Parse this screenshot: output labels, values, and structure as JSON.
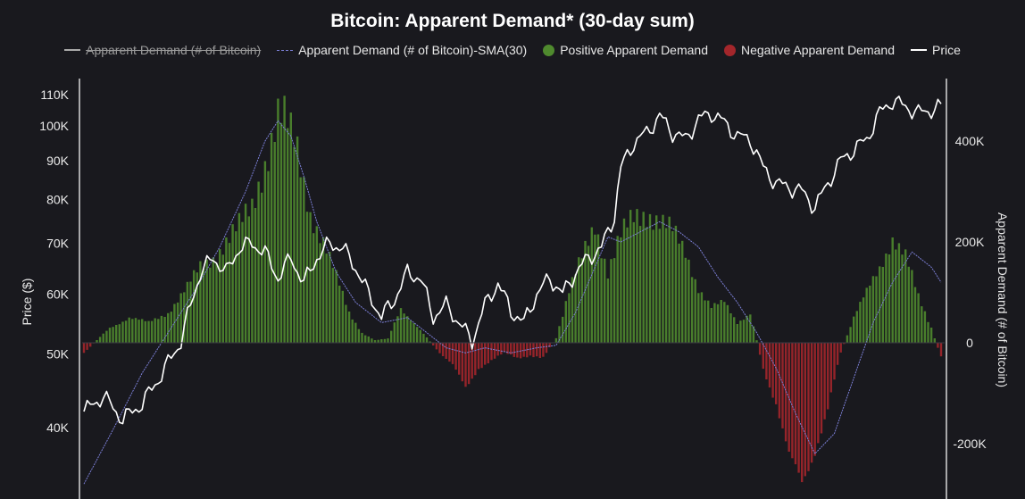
{
  "chart_data": {
    "type": "bar",
    "title": "Bitcoin: Apparent Demand* (30-day sum)",
    "legend_position": "top",
    "legend": [
      {
        "label": "Apparent Demand (# of Bitcoin)",
        "swatch": "line",
        "color": "#cccccc",
        "hidden": true
      },
      {
        "label": "Apparent Demand (# of Bitcoin)-SMA(30)",
        "swatch": "dashed-line",
        "color": "#7b7fd6"
      },
      {
        "label": "Positive Apparent Demand",
        "swatch": "dot",
        "color": "#4f8a2e"
      },
      {
        "label": "Negative Apparent Demand",
        "swatch": "dot",
        "color": "#a3262b"
      },
      {
        "label": "Price",
        "swatch": "line",
        "color": "#ffffff"
      }
    ],
    "ylabel_left": "Price ($)",
    "ylabel_right": "Apparent Demand (# of Bitcoin)",
    "left_axis": {
      "scale": "log",
      "ticks": [
        40000,
        50000,
        60000,
        70000,
        80000,
        90000,
        100000,
        110000
      ],
      "tick_labels": [
        "40K",
        "50K",
        "60K",
        "70K",
        "80K",
        "90K",
        "100K",
        "110K"
      ]
    },
    "right_axis": {
      "scale": "linear",
      "ticks": [
        -200000,
        0,
        200000,
        400000
      ],
      "tick_labels": [
        "-200K",
        "0",
        "200K",
        "400K"
      ]
    },
    "demand_anchors": [
      [
        0,
        -20000
      ],
      [
        4,
        5000
      ],
      [
        8,
        30000
      ],
      [
        14,
        50000
      ],
      [
        20,
        40000
      ],
      [
        26,
        60000
      ],
      [
        32,
        110000
      ],
      [
        36,
        150000
      ],
      [
        40,
        170000
      ],
      [
        44,
        200000
      ],
      [
        48,
        230000
      ],
      [
        52,
        270000
      ],
      [
        56,
        360000
      ],
      [
        60,
        450000
      ],
      [
        62,
        440000
      ],
      [
        66,
        380000
      ],
      [
        70,
        260000
      ],
      [
        74,
        200000
      ],
      [
        78,
        130000
      ],
      [
        82,
        60000
      ],
      [
        86,
        20000
      ],
      [
        90,
        5000
      ],
      [
        94,
        8000
      ],
      [
        98,
        70000
      ],
      [
        102,
        40000
      ],
      [
        106,
        10000
      ],
      [
        110,
        -20000
      ],
      [
        114,
        -45000
      ],
      [
        118,
        -90000
      ],
      [
        122,
        -50000
      ],
      [
        126,
        -35000
      ],
      [
        130,
        -20000
      ],
      [
        134,
        -30000
      ],
      [
        138,
        -25000
      ],
      [
        142,
        -30000
      ],
      [
        146,
        10000
      ],
      [
        150,
        100000
      ],
      [
        154,
        170000
      ],
      [
        158,
        240000
      ],
      [
        162,
        140000
      ],
      [
        166,
        210000
      ],
      [
        170,
        250000
      ],
      [
        174,
        260000
      ],
      [
        178,
        240000
      ],
      [
        182,
        220000
      ],
      [
        186,
        180000
      ],
      [
        190,
        110000
      ],
      [
        194,
        70000
      ],
      [
        198,
        80000
      ],
      [
        202,
        40000
      ],
      [
        206,
        60000
      ],
      [
        210,
        -50000
      ],
      [
        214,
        -120000
      ],
      [
        218,
        -230000
      ],
      [
        222,
        -280000
      ],
      [
        226,
        -210000
      ],
      [
        230,
        -130000
      ],
      [
        234,
        -20000
      ],
      [
        238,
        50000
      ],
      [
        242,
        100000
      ],
      [
        246,
        150000
      ],
      [
        250,
        210000
      ],
      [
        254,
        170000
      ],
      [
        258,
        90000
      ],
      [
        262,
        30000
      ],
      [
        265,
        -30000
      ]
    ],
    "price_anchors": [
      [
        0,
        42000
      ],
      [
        6,
        44000
      ],
      [
        12,
        41000
      ],
      [
        18,
        43000
      ],
      [
        24,
        47000
      ],
      [
        30,
        52000
      ],
      [
        36,
        64000
      ],
      [
        40,
        67000
      ],
      [
        44,
        64000
      ],
      [
        48,
        69000
      ],
      [
        52,
        70000
      ],
      [
        56,
        68000
      ],
      [
        60,
        63000
      ],
      [
        64,
        67000
      ],
      [
        68,
        62000
      ],
      [
        72,
        67000
      ],
      [
        76,
        70000
      ],
      [
        80,
        69000
      ],
      [
        84,
        65000
      ],
      [
        88,
        60000
      ],
      [
        92,
        56000
      ],
      [
        96,
        59000
      ],
      [
        100,
        64000
      ],
      [
        104,
        63000
      ],
      [
        108,
        56000
      ],
      [
        112,
        58000
      ],
      [
        116,
        55000
      ],
      [
        120,
        52000
      ],
      [
        124,
        58000
      ],
      [
        128,
        62000
      ],
      [
        132,
        57000
      ],
      [
        136,
        55000
      ],
      [
        140,
        60000
      ],
      [
        144,
        63000
      ],
      [
        148,
        60000
      ],
      [
        152,
        64000
      ],
      [
        156,
        67000
      ],
      [
        160,
        69000
      ],
      [
        164,
        76000
      ],
      [
        166,
        88000
      ],
      [
        170,
        95000
      ],
      [
        174,
        98000
      ],
      [
        178,
        103000
      ],
      [
        182,
        98000
      ],
      [
        186,
        96000
      ],
      [
        190,
        102000
      ],
      [
        194,
        104000
      ],
      [
        198,
        101000
      ],
      [
        202,
        97000
      ],
      [
        206,
        96000
      ],
      [
        210,
        88000
      ],
      [
        214,
        84000
      ],
      [
        218,
        83000
      ],
      [
        222,
        82000
      ],
      [
        226,
        78000
      ],
      [
        230,
        84000
      ],
      [
        234,
        90000
      ],
      [
        238,
        93000
      ],
      [
        242,
        96000
      ],
      [
        246,
        104000
      ],
      [
        250,
        108000
      ],
      [
        254,
        106000
      ],
      [
        258,
        104000
      ],
      [
        262,
        105000
      ],
      [
        265,
        106000
      ]
    ],
    "sma_anchors": [
      [
        0,
        -280000
      ],
      [
        10,
        -160000
      ],
      [
        18,
        -60000
      ],
      [
        26,
        20000
      ],
      [
        34,
        100000
      ],
      [
        42,
        190000
      ],
      [
        50,
        300000
      ],
      [
        56,
        400000
      ],
      [
        60,
        440000
      ],
      [
        64,
        410000
      ],
      [
        68,
        330000
      ],
      [
        72,
        240000
      ],
      [
        78,
        140000
      ],
      [
        84,
        80000
      ],
      [
        92,
        40000
      ],
      [
        100,
        50000
      ],
      [
        106,
        20000
      ],
      [
        112,
        -10000
      ],
      [
        118,
        -20000
      ],
      [
        124,
        -10000
      ],
      [
        132,
        -20000
      ],
      [
        140,
        -10000
      ],
      [
        146,
        -5000
      ],
      [
        152,
        60000
      ],
      [
        158,
        150000
      ],
      [
        162,
        210000
      ],
      [
        166,
        200000
      ],
      [
        172,
        220000
      ],
      [
        178,
        240000
      ],
      [
        184,
        220000
      ],
      [
        190,
        190000
      ],
      [
        196,
        130000
      ],
      [
        202,
        80000
      ],
      [
        208,
        20000
      ],
      [
        214,
        -50000
      ],
      [
        220,
        -140000
      ],
      [
        226,
        -220000
      ],
      [
        232,
        -180000
      ],
      [
        238,
        -70000
      ],
      [
        244,
        40000
      ],
      [
        250,
        120000
      ],
      [
        256,
        180000
      ],
      [
        262,
        150000
      ],
      [
        265,
        120000
      ]
    ],
    "n_days": 266
  }
}
